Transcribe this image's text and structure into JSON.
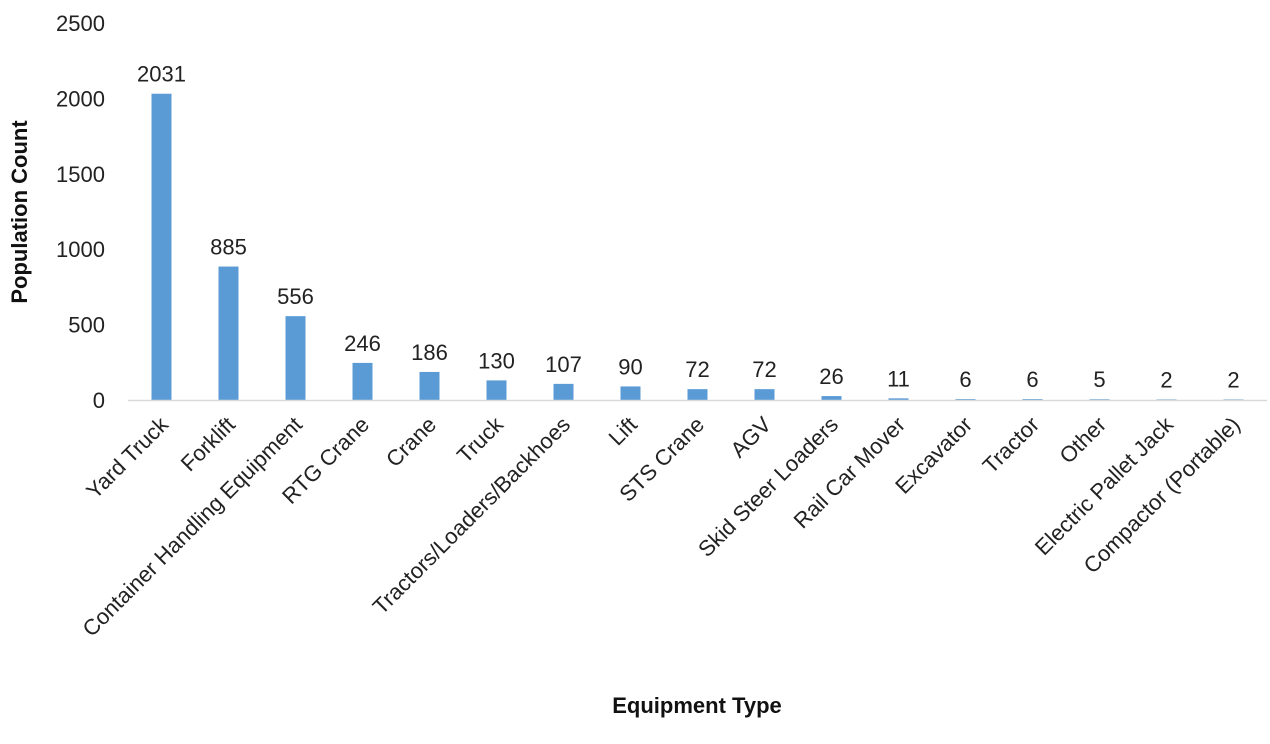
{
  "chart_data": {
    "type": "bar",
    "title": "",
    "xlabel": "Equipment Type",
    "ylabel": "Population Count",
    "ylim": [
      0,
      2500
    ],
    "yticks": [
      0,
      500,
      1000,
      1500,
      2000,
      2500
    ],
    "grid": false,
    "legend": "none",
    "bar_color": "#5B9BD5",
    "axis_color": "#D9D9D9",
    "categories": [
      "Yard Truck",
      "Forklift",
      "Container Handling Equipment",
      "RTG Crane",
      "Crane",
      "Truck",
      "Tractors/Loaders/Backhoes",
      "Lift",
      "STS Crane",
      "AGV",
      "Skid Steer Loaders",
      "Rail Car Mover",
      "Excavator",
      "Tractor",
      "Other",
      "Electric Pallet Jack",
      "Compactor (Portable)"
    ],
    "values": [
      2031,
      885,
      556,
      246,
      186,
      130,
      107,
      90,
      72,
      72,
      26,
      11,
      6,
      6,
      5,
      2,
      2
    ]
  }
}
